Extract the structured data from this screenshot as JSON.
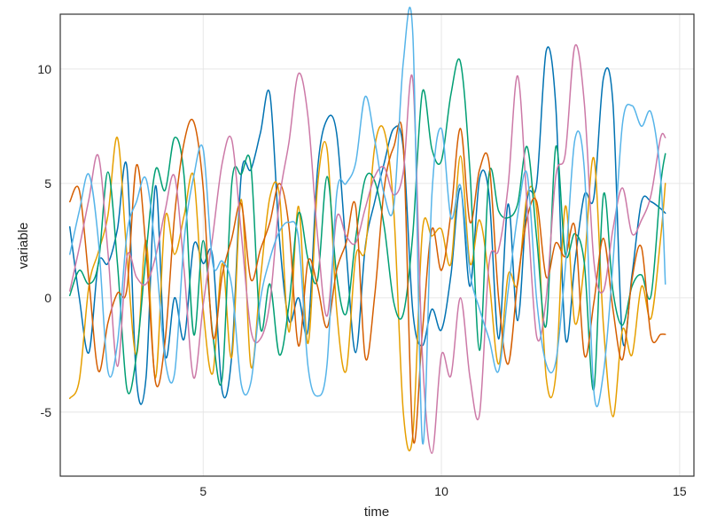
{
  "chart_data": {
    "type": "line",
    "title": "",
    "xlabel": "time",
    "ylabel": "variable",
    "xlim": [
      2.0,
      15.3
    ],
    "ylim": [
      -7.8,
      12.4
    ],
    "xticks": [
      5,
      10,
      15
    ],
    "yticks": [
      -5,
      0,
      5,
      10
    ],
    "xtick_labels": [
      "5",
      "10",
      "15"
    ],
    "ytick_labels": [
      "-5",
      "0",
      "5",
      "10"
    ],
    "grid": true,
    "legend": "none",
    "x": [
      2.2,
      2.4,
      2.6,
      2.8,
      3.0,
      3.2,
      3.4,
      3.6,
      3.8,
      4.0,
      4.2,
      4.4,
      4.6,
      4.8,
      5.0,
      5.2,
      5.4,
      5.6,
      5.8,
      6.0,
      6.2,
      6.4,
      6.6,
      6.8,
      7.0,
      7.2,
      7.4,
      7.6,
      7.8,
      8.0,
      8.2,
      8.4,
      8.6,
      8.8,
      9.0,
      9.2,
      9.4,
      9.6,
      9.8,
      10.0,
      10.2,
      10.4,
      10.6,
      10.8,
      11.0,
      11.2,
      11.4,
      11.6,
      11.8,
      12.0,
      12.2,
      12.4,
      12.6,
      12.8,
      13.0,
      13.2,
      13.4,
      13.6,
      13.8,
      14.0,
      14.2,
      14.4,
      14.6,
      14.7
    ],
    "series": [
      {
        "color": "#0072b2",
        "values": [
          3.1,
          0.0,
          -2.4,
          1.5,
          1.5,
          3.0,
          5.7,
          -3.6,
          -3.5,
          4.9,
          -2.5,
          0.0,
          -1.8,
          2.3,
          1.5,
          1.8,
          -4.1,
          -2.5,
          5.4,
          5.6,
          7.2,
          8.9,
          2.6,
          -1.0,
          0.0,
          -1.4,
          5.6,
          7.8,
          7.2,
          2.1,
          -2.4,
          2.2,
          4.2,
          5.9,
          7.4,
          6.5,
          -0.6,
          -2.1,
          -0.5,
          -1.4,
          1.0,
          4.8,
          0.5,
          5.2,
          4.5,
          -1.8,
          4.1,
          -1.0,
          4.3,
          5.0,
          10.8,
          8.4,
          -1.7,
          1.5,
          4.5,
          4.4,
          9.6,
          8.5,
          -1.8,
          1.0,
          4.2,
          4.2,
          3.9,
          3.7
        ]
      },
      {
        "color": "#e69f00",
        "values": [
          -4.4,
          -3.6,
          0.5,
          2.0,
          3.6,
          7.0,
          1.8,
          -2.5,
          2.5,
          -3.5,
          3.5,
          1.9,
          3.6,
          5.3,
          -0.5,
          -3.3,
          1.5,
          -2.6,
          4.3,
          -3.0,
          0.8,
          4.4,
          4.5,
          -1.5,
          4.0,
          -2.0,
          4.9,
          6.5,
          -0.5,
          -3.2,
          1.8,
          2.1,
          6.6,
          7.3,
          3.8,
          -5.0,
          -6.0,
          2.9,
          2.7,
          3.0,
          1.5,
          6.2,
          1.5,
          3.4,
          0.8,
          -2.9,
          1.0,
          0.6,
          4.5,
          3.8,
          -3.5,
          -3.4,
          4.0,
          -1.1,
          1.5,
          6.1,
          -1.2,
          -5.2,
          -1.4,
          -2.5,
          0.5,
          -0.9,
          2.6,
          5.0
        ]
      },
      {
        "color": "#009e73",
        "values": [
          0.1,
          1.2,
          0.6,
          1.5,
          5.5,
          1.5,
          -4.0,
          -2.5,
          1.9,
          5.6,
          4.7,
          7.0,
          5.3,
          -1.6,
          2.5,
          -1.6,
          -3.5,
          5.0,
          5.4,
          5.8,
          -1.3,
          0.6,
          -2.5,
          -0.3,
          3.7,
          1.7,
          0.8,
          5.3,
          1.0,
          -0.7,
          2.6,
          5.2,
          5.1,
          3.1,
          -0.2,
          -0.7,
          2.8,
          9.0,
          6.5,
          6.0,
          8.9,
          10.3,
          5.5,
          -2.3,
          5.4,
          3.8,
          3.5,
          4.1,
          6.6,
          2.6,
          -1.2,
          6.6,
          1.9,
          2.8,
          1.5,
          -4.0,
          4.5,
          0.3,
          -1.2,
          0.5,
          1.0,
          0.1,
          4.9,
          6.3
        ]
      },
      {
        "color": "#d55e00",
        "values": [
          4.2,
          4.7,
          0.8,
          -3.2,
          -1.1,
          0.2,
          0.4,
          5.8,
          2.1,
          -3.7,
          -1.9,
          3.6,
          6.8,
          7.7,
          4.8,
          -1.7,
          1.0,
          2.6,
          4.1,
          0.8,
          2.1,
          3.3,
          5.0,
          3.1,
          -2.1,
          1.6,
          0.5,
          -1.3,
          1.2,
          2.4,
          4.0,
          -2.6,
          0.1,
          4.8,
          6.6,
          6.7,
          -6.1,
          -1.5,
          3.0,
          1.2,
          3.7,
          7.4,
          3.3,
          5.6,
          5.9,
          0.0,
          -2.9,
          0.7,
          3.5,
          4.2,
          0.9,
          2.4,
          1.8,
          3.1,
          -2.5,
          -0.2,
          2.6,
          -0.5,
          -2.7,
          0.8,
          2.2,
          -1.7,
          -1.6,
          -1.6
        ]
      },
      {
        "color": "#cc79a7",
        "values": [
          0.3,
          2.2,
          4.3,
          6.2,
          2.0,
          -3.0,
          1.8,
          0.9,
          0.6,
          1.8,
          3.8,
          5.3,
          1.2,
          -3.5,
          -0.3,
          2.7,
          5.9,
          6.9,
          2.8,
          -1.4,
          -1.8,
          -0.2,
          4.3,
          6.8,
          9.8,
          7.9,
          2.7,
          -0.8,
          3.5,
          2.7,
          2.4,
          3.9,
          5.3,
          5.7,
          4.5,
          5.5,
          9.5,
          -2.5,
          -6.8,
          -2.5,
          -3.4,
          0.0,
          -3.5,
          -5.1,
          1.5,
          2.1,
          4.9,
          9.7,
          4.0,
          -1.7,
          0.0,
          5.3,
          6.3,
          11.0,
          8.5,
          1.6,
          0.3,
          3.0,
          4.8,
          2.8,
          3.4,
          4.5,
          7.0,
          7.0
        ]
      },
      {
        "color": "#56b4e9",
        "values": [
          1.9,
          3.8,
          5.4,
          2.5,
          -3.2,
          -2.0,
          2.8,
          4.2,
          5.2,
          2.0,
          -2.7,
          -3.3,
          2.5,
          5.3,
          6.5,
          1.5,
          1.6,
          0.5,
          -3.8,
          -3.7,
          -0.1,
          1.7,
          2.9,
          3.3,
          2.6,
          -3.0,
          -4.3,
          -2.9,
          4.5,
          5.0,
          5.9,
          8.8,
          6.9,
          4.5,
          4.0,
          10.3,
          11.5,
          -6.3,
          4.5,
          7.4,
          3.5,
          4.9,
          1.1,
          -0.5,
          -1.8,
          -3.2,
          0.3,
          3.6,
          5.4,
          -0.1,
          -2.9,
          -2.8,
          1.3,
          6.9,
          5.6,
          -4.1,
          -3.3,
          1.5,
          7.6,
          8.4,
          7.5,
          8.1,
          5.3,
          0.6
        ]
      }
    ]
  }
}
